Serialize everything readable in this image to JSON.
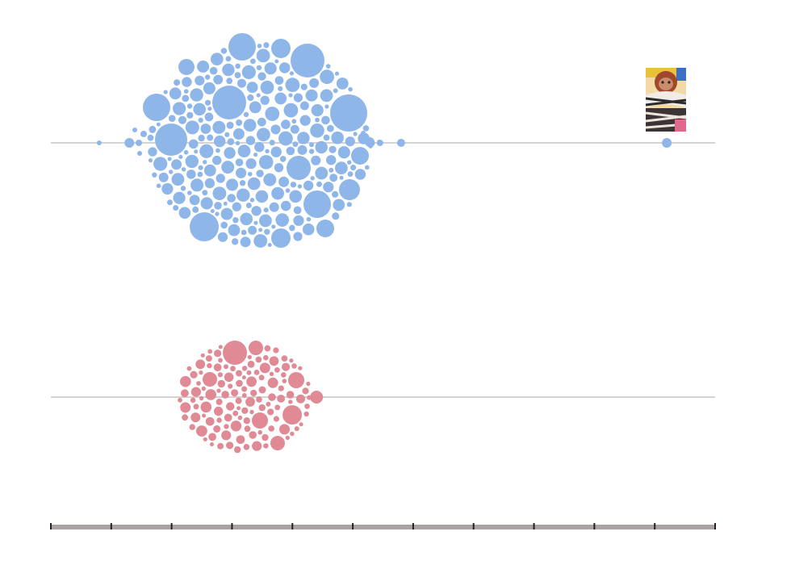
{
  "colors": {
    "background": "#ffffff",
    "blue_series": "#8fb6e8",
    "pink_series": "#e08a95",
    "baseline": "#d3d3d3",
    "axis_bar": "#aaa3a3",
    "axis_tick": "#222222"
  },
  "annotation_image": {
    "icon": "character-portrait-icon"
  },
  "chart_data": {
    "type": "beeswarm",
    "rows": [
      {
        "key": "row-blue",
        "color": "blue",
        "bubbles": 360,
        "outliers": [
          {
            "x": 0.8,
            "r": 3
          },
          {
            "x": 1.3,
            "r": 6
          },
          {
            "x": 5.3,
            "r": 5
          },
          {
            "x": 5.45,
            "r": 4
          },
          {
            "x": 5.8,
            "r": 5
          },
          {
            "x": 10.2,
            "r": 6,
            "annotated": true
          }
        ]
      },
      {
        "key": "row-pink",
        "color": "pink",
        "bubbles": 160,
        "outliers": [
          {
            "x": 4.4,
            "r": 8
          }
        ]
      }
    ],
    "x_domain": [
      0,
      11
    ],
    "x_ticks": [
      0,
      1,
      2,
      3,
      4,
      5,
      6,
      7,
      8,
      9,
      10,
      11
    ],
    "tick_labels_shown": false,
    "grid": false,
    "legend": "none"
  }
}
